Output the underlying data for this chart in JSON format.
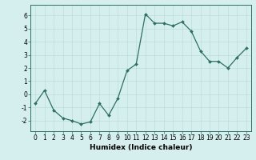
{
  "x": [
    0,
    1,
    2,
    3,
    4,
    5,
    6,
    7,
    8,
    9,
    10,
    11,
    12,
    13,
    14,
    15,
    16,
    17,
    18,
    19,
    20,
    21,
    22,
    23
  ],
  "y": [
    -0.7,
    0.3,
    -1.2,
    -1.8,
    -2.0,
    -2.25,
    -2.1,
    -0.7,
    -1.6,
    -0.3,
    1.8,
    2.3,
    6.1,
    5.4,
    5.4,
    5.2,
    5.5,
    4.8,
    3.3,
    2.5,
    2.5,
    2.0,
    2.8,
    3.5
  ],
  "line_color": "#2e7060",
  "marker": "D",
  "markersize": 2.0,
  "linewidth": 0.9,
  "bg_color": "#d5efee",
  "grid_color": "#b8d8d5",
  "xlabel": "Humidex (Indice chaleur)",
  "xlim": [
    -0.5,
    23.5
  ],
  "ylim": [
    -2.8,
    6.8
  ],
  "yticks": [
    -2,
    -1,
    0,
    1,
    2,
    3,
    4,
    5,
    6
  ],
  "xticks": [
    0,
    1,
    2,
    3,
    4,
    5,
    6,
    7,
    8,
    9,
    10,
    11,
    12,
    13,
    14,
    15,
    16,
    17,
    18,
    19,
    20,
    21,
    22,
    23
  ],
  "tick_fontsize": 5.5,
  "xlabel_fontsize": 6.5,
  "grid_linewidth": 0.4,
  "spine_color": "#2e7060"
}
